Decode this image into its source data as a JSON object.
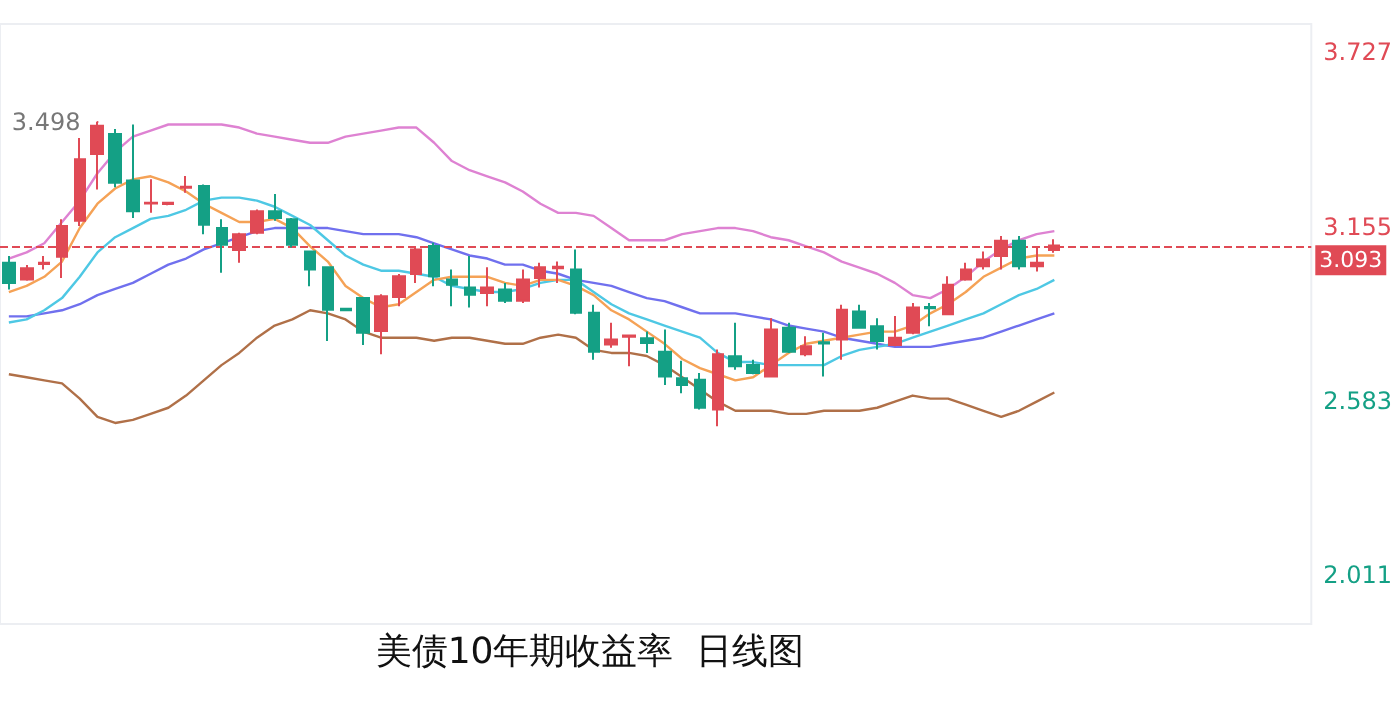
{
  "chart_data": {
    "type": "candlestick",
    "title": "美债10年期收益率  日线图",
    "categories": [
      null,
      null,
      null,
      null,
      null,
      null,
      null,
      null,
      null,
      null,
      null,
      null,
      null,
      null,
      null,
      null,
      null,
      null,
      null,
      null,
      null,
      null,
      null,
      null,
      null,
      null,
      null,
      null,
      null,
      null,
      null,
      null,
      null,
      null,
      null,
      null,
      null,
      null,
      null,
      null,
      null,
      null,
      null,
      null,
      null,
      null,
      null,
      null,
      null,
      null,
      null,
      null,
      null,
      null,
      null,
      null,
      null,
      null,
      null,
      null
    ],
    "ohlc": [
      [
        3.036,
        3.058,
        2.948,
        2.97
      ],
      [
        2.981,
        3.029,
        2.977,
        3.018
      ],
      [
        3.032,
        3.058,
        3.014,
        3.036
      ],
      [
        3.056,
        3.179,
        2.986,
        3.157
      ],
      [
        3.174,
        3.446,
        3.157,
        3.376
      ],
      [
        3.393,
        3.498,
        3.277,
        3.486
      ],
      [
        3.459,
        3.475,
        3.284,
        3.299
      ],
      [
        3.306,
        3.49,
        3.183,
        3.205
      ],
      [
        3.231,
        3.31,
        3.2,
        3.233
      ],
      [
        3.229,
        3.236,
        3.225,
        3.233
      ],
      [
        3.282,
        3.321,
        3.266,
        3.286
      ],
      [
        3.288,
        3.293,
        3.13,
        3.161
      ],
      [
        3.15,
        3.179,
        3.003,
        3.095
      ],
      [
        3.078,
        3.135,
        3.036,
        3.13
      ],
      [
        3.135,
        3.211,
        3.13,
        3.205
      ],
      [
        3.205,
        3.262,
        3.174,
        3.183
      ],
      [
        3.179,
        3.183,
        3.086,
        3.095
      ],
      [
        3.073,
        3.073,
        2.959,
        3.014
      ],
      [
        3.021,
        3.021,
        2.779,
        2.882
      ],
      [
        2.885,
        2.887,
        2.878,
        2.88
      ],
      [
        2.92,
        2.92,
        2.766,
        2.806
      ],
      [
        2.812,
        2.933,
        2.736,
        2.926
      ],
      [
        2.924,
        2.999,
        2.893,
        2.992
      ],
      [
        2.999,
        3.091,
        2.97,
        3.08
      ],
      [
        3.091,
        3.102,
        2.959,
        2.992
      ],
      [
        2.981,
        3.014,
        2.893,
        2.964
      ],
      [
        2.955,
        3.058,
        2.889,
        2.931
      ],
      [
        2.937,
        3.021,
        2.893,
        2.955
      ],
      [
        2.948,
        2.97,
        2.904,
        2.911
      ],
      [
        2.911,
        3.014,
        2.904,
        2.981
      ],
      [
        2.986,
        3.036,
        2.955,
        3.021
      ],
      [
        3.018,
        3.04,
        2.97,
        3.023
      ],
      [
        3.014,
        3.08,
        2.867,
        2.872
      ],
      [
        2.872,
        2.898,
        2.718,
        2.744
      ],
      [
        2.768,
        2.839,
        2.757,
        2.784
      ],
      [
        2.793,
        2.8,
        2.696,
        2.797
      ],
      [
        2.788,
        2.81,
        2.74,
        2.773
      ],
      [
        2.744,
        2.817,
        2.635,
        2.663
      ],
      [
        2.657,
        2.714,
        2.608,
        2.635
      ],
      [
        2.652,
        2.674,
        2.554,
        2.56
      ],
      [
        2.554,
        2.751,
        2.499,
        2.736
      ],
      [
        2.729,
        2.839,
        2.685,
        2.696
      ],
      [
        2.7,
        2.718,
        2.67,
        2.674
      ],
      [
        2.663,
        2.854,
        2.663,
        2.817
      ],
      [
        2.823,
        2.839,
        2.74,
        2.744
      ],
      [
        2.736,
        2.795,
        2.729,
        2.762
      ],
      [
        2.775,
        2.806,
        2.663,
        2.771
      ],
      [
        2.784,
        2.898,
        2.718,
        2.882
      ],
      [
        2.876,
        2.898,
        2.823,
        2.823
      ],
      [
        2.828,
        2.854,
        2.751,
        2.779
      ],
      [
        2.766,
        2.861,
        2.762,
        2.79
      ],
      [
        2.806,
        2.904,
        2.801,
        2.889
      ],
      [
        2.891,
        2.904,
        2.828,
        2.887
      ],
      [
        2.867,
        2.992,
        2.867,
        2.964
      ],
      [
        2.981,
        3.036,
        2.977,
        3.014
      ],
      [
        3.025,
        3.073,
        3.014,
        3.047
      ],
      [
        3.058,
        3.124,
        3.014,
        3.108
      ],
      [
        3.108,
        3.124,
        3.014,
        3.025
      ],
      [
        3.025,
        3.086,
        3.007,
        3.036
      ],
      [
        3.078,
        3.113,
        3.069,
        3.093
      ]
    ],
    "series": [
      {
        "type": "line",
        "color": "#de82d2",
        "values": [
          3.05,
          3.07,
          3.1,
          3.17,
          3.24,
          3.33,
          3.4,
          3.45,
          3.47,
          3.49,
          3.49,
          3.49,
          3.49,
          3.48,
          3.46,
          3.45,
          3.44,
          3.43,
          3.43,
          3.45,
          3.46,
          3.47,
          3.48,
          3.48,
          3.43,
          3.37,
          3.34,
          3.32,
          3.3,
          3.27,
          3.23,
          3.2,
          3.2,
          3.19,
          3.15,
          3.11,
          3.11,
          3.11,
          3.13,
          3.14,
          3.15,
          3.15,
          3.14,
          3.12,
          3.11,
          3.09,
          3.07,
          3.04,
          3.02,
          3.0,
          2.97,
          2.93,
          2.92,
          2.95,
          2.99,
          3.04,
          3.08,
          3.11,
          3.13,
          3.14
        ]
      },
      {
        "type": "line",
        "color": "#b07048",
        "values": [
          2.67,
          2.66,
          2.65,
          2.64,
          2.59,
          2.53,
          2.51,
          2.52,
          2.54,
          2.56,
          2.6,
          2.65,
          2.7,
          2.74,
          2.79,
          2.83,
          2.85,
          2.88,
          2.87,
          2.85,
          2.81,
          2.79,
          2.79,
          2.79,
          2.78,
          2.79,
          2.79,
          2.78,
          2.77,
          2.77,
          2.79,
          2.8,
          2.79,
          2.75,
          2.74,
          2.74,
          2.73,
          2.7,
          2.66,
          2.62,
          2.58,
          2.55,
          2.55,
          2.55,
          2.54,
          2.54,
          2.55,
          2.55,
          2.55,
          2.56,
          2.58,
          2.6,
          2.59,
          2.59,
          2.57,
          2.55,
          2.53,
          2.55,
          2.58,
          2.61
        ]
      },
      {
        "type": "line",
        "color": "#7070ee",
        "values": [
          2.86,
          2.86,
          2.87,
          2.88,
          2.9,
          2.93,
          2.95,
          2.97,
          3.0,
          3.03,
          3.05,
          3.08,
          3.1,
          3.12,
          3.14,
          3.15,
          3.15,
          3.15,
          3.15,
          3.14,
          3.13,
          3.13,
          3.13,
          3.12,
          3.1,
          3.08,
          3.06,
          3.05,
          3.03,
          3.03,
          3.01,
          3.0,
          2.98,
          2.97,
          2.96,
          2.94,
          2.92,
          2.91,
          2.89,
          2.87,
          2.87,
          2.87,
          2.86,
          2.85,
          2.83,
          2.82,
          2.81,
          2.79,
          2.78,
          2.77,
          2.76,
          2.76,
          2.76,
          2.77,
          2.78,
          2.79,
          2.81,
          2.83,
          2.85,
          2.87
        ]
      },
      {
        "type": "line",
        "color": "#4ec8e4",
        "values": [
          2.84,
          2.85,
          2.88,
          2.92,
          2.99,
          3.07,
          3.12,
          3.15,
          3.18,
          3.19,
          3.21,
          3.24,
          3.25,
          3.25,
          3.24,
          3.22,
          3.19,
          3.16,
          3.11,
          3.06,
          3.03,
          3.01,
          3.01,
          3.0,
          2.99,
          2.96,
          2.95,
          2.94,
          2.94,
          2.95,
          2.97,
          2.98,
          2.98,
          2.94,
          2.9,
          2.87,
          2.85,
          2.83,
          2.81,
          2.79,
          2.74,
          2.71,
          2.71,
          2.7,
          2.7,
          2.7,
          2.7,
          2.73,
          2.75,
          2.76,
          2.77,
          2.79,
          2.81,
          2.83,
          2.85,
          2.87,
          2.9,
          2.93,
          2.95,
          2.98
        ]
      },
      {
        "type": "line",
        "color": "#f5a256",
        "values": [
          2.94,
          2.96,
          2.99,
          3.04,
          3.15,
          3.23,
          3.28,
          3.31,
          3.32,
          3.3,
          3.27,
          3.23,
          3.2,
          3.17,
          3.17,
          3.18,
          3.15,
          3.09,
          3.04,
          2.96,
          2.92,
          2.89,
          2.9,
          2.94,
          2.98,
          2.99,
          2.99,
          2.99,
          2.97,
          2.96,
          2.98,
          2.98,
          2.96,
          2.93,
          2.88,
          2.85,
          2.81,
          2.77,
          2.72,
          2.69,
          2.67,
          2.65,
          2.66,
          2.7,
          2.74,
          2.77,
          2.78,
          2.79,
          2.8,
          2.81,
          2.81,
          2.83,
          2.87,
          2.9,
          2.94,
          2.99,
          3.02,
          3.05,
          3.06,
          3.06
        ]
      }
    ],
    "ylim": [
      1.85,
      3.82
    ],
    "yticks": [
      3.727,
      3.155,
      2.583,
      2.011
    ],
    "ref_lines": [
      {
        "axis": "y",
        "value": 3.093,
        "label": "3.093",
        "color": "#e04a55",
        "line_style": "dashed"
      }
    ],
    "annotations": [
      "3.498"
    ],
    "tick_labels": "y",
    "grid": false
  }
}
